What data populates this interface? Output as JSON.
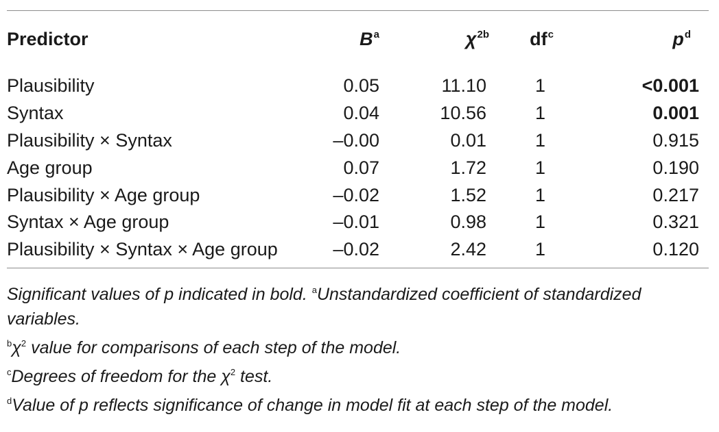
{
  "table": {
    "headers": {
      "predictor": "Predictor",
      "b": "B",
      "b_sup": "a",
      "chi": "χ",
      "chi_sup": "2b",
      "df": "df",
      "df_sup": "c",
      "p": "p",
      "p_sup": "d"
    },
    "rows": [
      {
        "predictor": "Plausibility",
        "b": "0.05",
        "chi": "11.10",
        "df": "1",
        "p": "<0.001",
        "p_bold": true
      },
      {
        "predictor": "Syntax",
        "b": "0.04",
        "chi": "10.56",
        "df": "1",
        "p": "0.001",
        "p_bold": true
      },
      {
        "predictor": "Plausibility × Syntax",
        "b": "–0.00",
        "chi": "0.01",
        "df": "1",
        "p": "0.915",
        "p_bold": false
      },
      {
        "predictor": "Age group",
        "b": "0.07",
        "chi": "1.72",
        "df": "1",
        "p": "0.190",
        "p_bold": false
      },
      {
        "predictor": "Plausibility × Age group",
        "b": "–0.02",
        "chi": "1.52",
        "df": "1",
        "p": "0.217",
        "p_bold": false
      },
      {
        "predictor": "Syntax × Age group",
        "b": "–0.01",
        "chi": "0.98",
        "df": "1",
        "p": "0.321",
        "p_bold": false
      },
      {
        "predictor": "Plausibility × Syntax × Age group",
        "b": "–0.02",
        "chi": "2.42",
        "df": "1",
        "p": "0.120",
        "p_bold": false
      }
    ]
  },
  "notes": {
    "line1_main": "Significant values of p indicated in bold. ",
    "line1_sup": "a",
    "line1_rest": "Unstandardized coefficient of standardized variables.",
    "line2_sup": "b",
    "line2_chi": "χ",
    "line2_chi_sup": "2",
    "line2_rest": " value for comparisons of each step of the model.",
    "line3_sup": "c",
    "line3_main": "Degrees of freedom for the ",
    "line3_chi": "χ",
    "line3_chi_sup": "2",
    "line3_rest": " test.",
    "line4_sup": "d",
    "line4_main": "Value of p reflects significance of change in model fit at each step of the model."
  }
}
